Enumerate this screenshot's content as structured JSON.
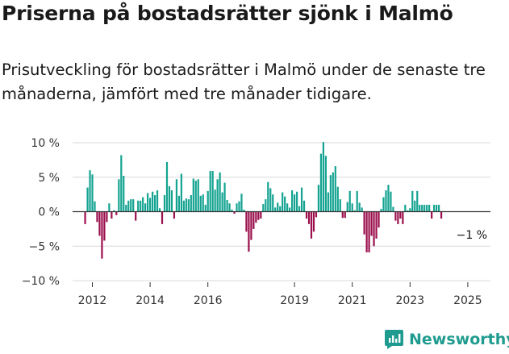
{
  "header": {
    "title": "Priserna på bostadsrätter sjönk i Malmö",
    "subtitle": "Prisutveckling för bostadsrätter i Malmö under de senaste tre månaderna, jämfört med tre månader tidigare."
  },
  "brand": {
    "name": "Newsworthy",
    "icon": "newsworthy-logo-icon"
  },
  "colors": {
    "positive": "#14a391",
    "negative": "#9b0f4d",
    "grid": "#d8d8d8",
    "zero_line": "#333333"
  },
  "chart_data": {
    "type": "bar",
    "start": "2011-10",
    "unit": "%",
    "ylim": [
      -10,
      10
    ],
    "yticks": [
      10,
      5,
      0,
      -5,
      -10
    ],
    "ytick_labels": [
      "10 %",
      "5 %",
      "0 %",
      "−5 %",
      "−10 %"
    ],
    "xtick_labels": [
      "2012",
      "2014",
      "2016",
      "2019",
      "2021",
      "2023",
      "2025"
    ],
    "end_label": "−1 %",
    "grid": true,
    "values": [
      -1.8,
      3.5,
      6.0,
      5.4,
      1.5,
      -1.5,
      -3.5,
      -6.8,
      -4.2,
      -1.5,
      1.2,
      -1.0,
      0.2,
      -0.5,
      4.7,
      8.2,
      5.2,
      1.0,
      1.6,
      1.8,
      1.8,
      -1.3,
      1.6,
      1.6,
      2.1,
      1.2,
      2.7,
      2.0,
      2.9,
      2.4,
      3.1,
      0.5,
      -1.8,
      2.4,
      7.2,
      3.7,
      3.1,
      -1.0,
      4.7,
      2.3,
      5.5,
      1.6,
      1.9,
      1.8,
      2.4,
      4.8,
      4.5,
      4.7,
      2.3,
      2.5,
      1.0,
      3.0,
      5.9,
      5.9,
      3.2,
      4.7,
      5.7,
      2.8,
      4.2,
      1.7,
      1.2,
      0.3,
      -0.3,
      1.2,
      1.5,
      2.6,
      0.3,
      -2.9,
      -5.8,
      -4.1,
      -2.5,
      -1.6,
      -1.2,
      -1.0,
      1.1,
      1.8,
      4.3,
      3.4,
      2.5,
      0.6,
      1.3,
      0.8,
      2.8,
      2.2,
      1.2,
      0.6,
      3.1,
      2.5,
      2.9,
      0.8,
      3.5,
      1.6,
      -1.0,
      -1.8,
      -3.9,
      -2.9,
      -0.8,
      3.9,
      8.4,
      10.1,
      8.1,
      2.8,
      5.3,
      5.7,
      6.6,
      3.6,
      1.8,
      -0.9,
      -0.9,
      1.4,
      3.0,
      1.2,
      0.2,
      3.0,
      1.3,
      0.6,
      -3.3,
      -5.9,
      -5.9,
      -3.5,
      -5.0,
      -3.9,
      -2.3,
      0.4,
      2.1,
      3.1,
      3.9,
      2.9,
      0.7,
      -1.3,
      -1.8,
      -1.0,
      -1.8,
      1.0,
      0.2,
      0.5,
      3.0,
      1.6,
      3.0,
      1.0,
      1.0,
      1.0,
      1.0,
      1.0,
      -1.0,
      1.0,
      1.0,
      1.0,
      -1.0
    ]
  }
}
